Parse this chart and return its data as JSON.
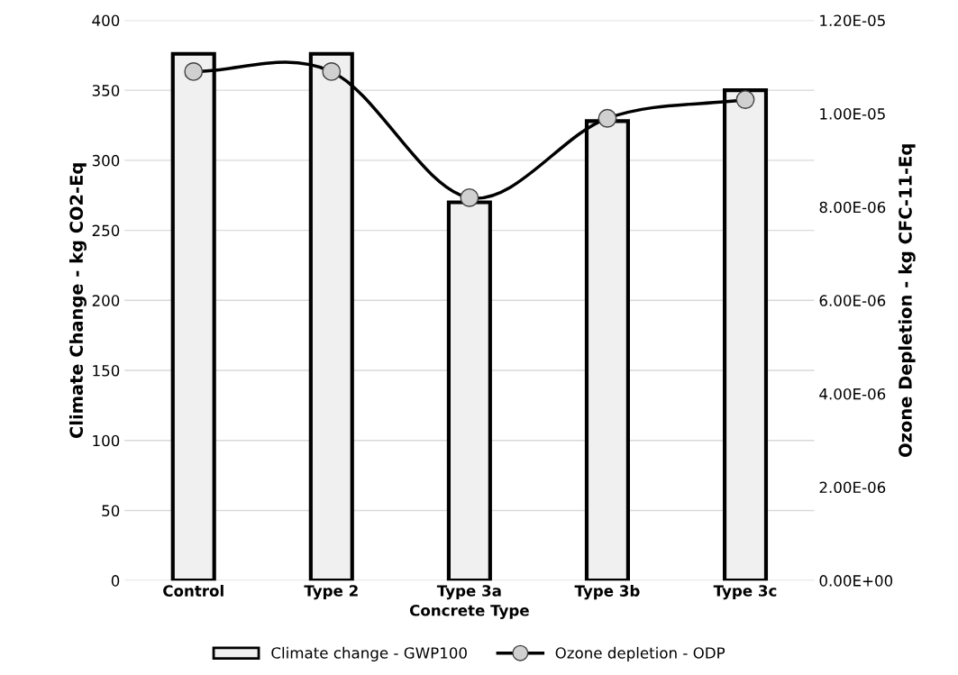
{
  "chart_data": {
    "type": "bar",
    "xlabel": "Concrete Type",
    "ylabel": "Climate Change - kg CO2-Eq",
    "y2label": "Ozone Depletion - kg CFC-11-Eq",
    "categories": [
      "Control",
      "Type 2",
      "Type 3a",
      "Type 3b",
      "Type 3c"
    ],
    "series": [
      {
        "name": "Climate change - GWP100",
        "color": "#f0f0f0",
        "values": [
          376,
          376,
          270,
          328,
          350
        ]
      },
      {
        "name": "Ozone depletion - ODP",
        "type": "line",
        "axis": "y2",
        "color": "#000000",
        "marker": "circle",
        "line_style": "solid",
        "values": [
          1.09e-05,
          1.09e-05,
          8.2e-06,
          9.9e-06,
          1.03e-05
        ]
      }
    ],
    "ylim": [
      0,
      400
    ],
    "yticks": [
      0,
      50,
      100,
      150,
      200,
      250,
      300,
      350,
      400
    ],
    "y2lim": [
      0,
      1.2e-05
    ],
    "y2ticks": [
      {
        "value": 0,
        "label": "0.00E+00"
      },
      {
        "value": 2e-06,
        "label": "2.00E-06"
      },
      {
        "value": 4e-06,
        "label": "4.00E-06"
      },
      {
        "value": 6e-06,
        "label": "6.00E-06"
      },
      {
        "value": 8e-06,
        "label": "8.00E-06"
      },
      {
        "value": 1e-05,
        "label": "1.00E-05"
      },
      {
        "value": 1.2e-05,
        "label": "1.20E-05"
      }
    ],
    "grid": "y",
    "legend": "bottom"
  }
}
